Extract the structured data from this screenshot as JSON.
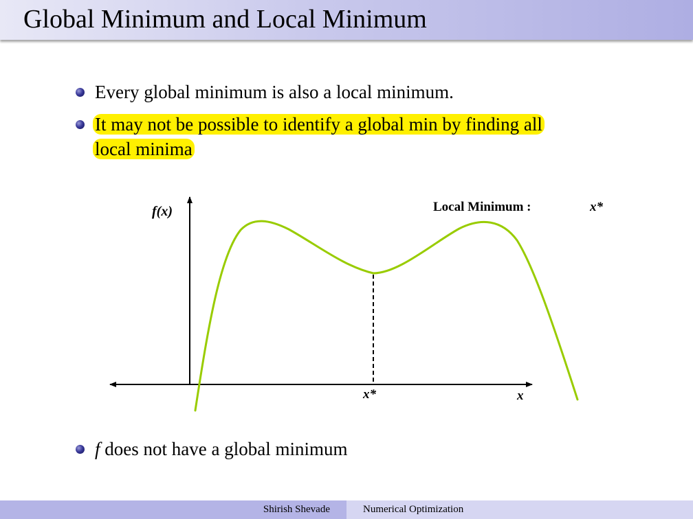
{
  "slide": {
    "title": "Global Minimum and Local Minimum",
    "bullets": [
      {
        "text": "Every global minimum is also a local minimum."
      },
      {
        "line1": "It may not be possible to identify a global min by finding all",
        "line2": "local minima",
        "highlight_color": "#fff000"
      },
      {
        "var": "f",
        "text": "does not have a global minimum"
      }
    ]
  },
  "diagram": {
    "y_axis_label": "f(x)",
    "x_axis_label": "x",
    "x_star_label": "x*",
    "annotation": "Local Minimum :",
    "annotation_var": "x*",
    "curve_color": "#99cc00"
  },
  "footer": {
    "author": "Shirish Shevade",
    "course": "Numerical Optimization"
  }
}
